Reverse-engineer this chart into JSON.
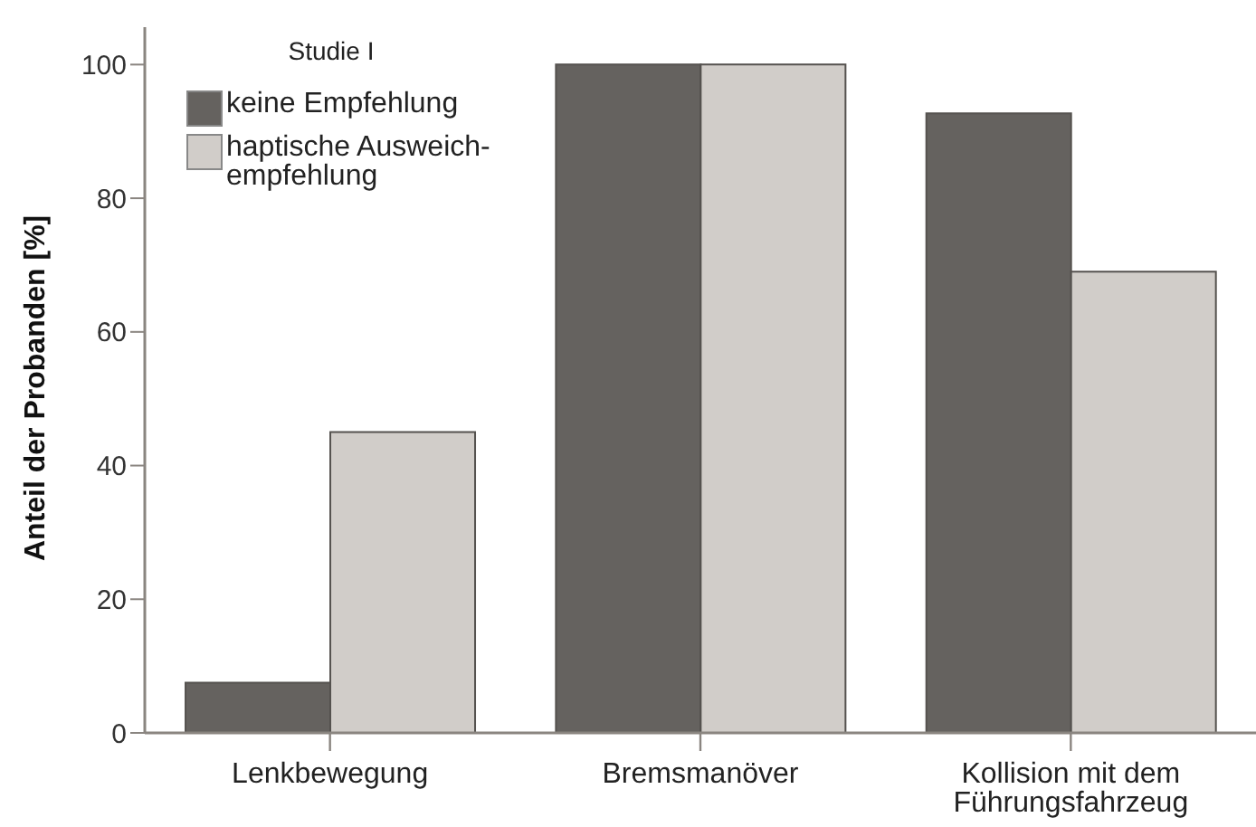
{
  "chart_data": {
    "type": "bar",
    "ylabel": "Anteil der Probanden [%]",
    "legend_title": "Studie I",
    "legend": "top left",
    "categories": [
      "Lenkbewegung",
      "Bremsmanöver",
      "Kollision mit dem Führungsfahrzeug"
    ],
    "series": [
      {
        "name": "keine Empfehlung",
        "color": "#65625f",
        "values": [
          7.5,
          100,
          92.7
        ]
      },
      {
        "name": "haptische Ausweich-empfehlung",
        "color": "#d1cdc9",
        "values": [
          45,
          100,
          69
        ]
      }
    ],
    "ylim": [
      0,
      105.6
    ],
    "yticks": [
      0,
      20,
      40,
      60,
      80,
      100
    ],
    "grid": false
  }
}
